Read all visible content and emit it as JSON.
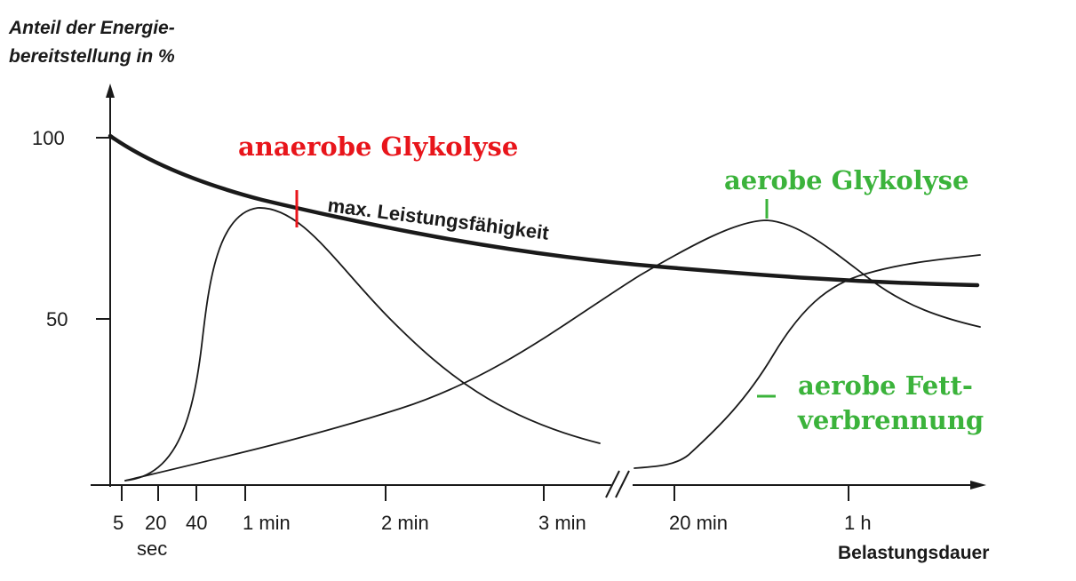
{
  "chart_data": {
    "type": "line",
    "ylabel": [
      "Anteil der Energie-",
      "bereitstellung in %"
    ],
    "xlabel": "Belastungsdauer",
    "y_ticks": [
      100,
      50
    ],
    "ylim": [
      0,
      100
    ],
    "x_tick_labels": [
      "5",
      "20",
      "40",
      "sec",
      "1 min",
      "2 min",
      "3 min",
      "20 min",
      "1 h"
    ],
    "axis_break": "between 3 min and 20 min",
    "grid": false,
    "series": [
      {
        "name": "max. Leistungsfähigkeit",
        "style": "thick",
        "points": [
          {
            "x": "0 s",
            "y": 100
          },
          {
            "x": "20 s",
            "y": 92
          },
          {
            "x": "40 s",
            "y": 87
          },
          {
            "x": "1 min",
            "y": 82
          },
          {
            "x": "2 min",
            "y": 72
          },
          {
            "x": "3 min",
            "y": 67
          },
          {
            "x": "20 min",
            "y": 63
          },
          {
            "x": "1 h",
            "y": 60
          },
          {
            "x": "end",
            "y": 55
          }
        ]
      },
      {
        "name": "anaerobe Glykolyse",
        "style": "thin",
        "points": [
          {
            "x": "5 s",
            "y": 1
          },
          {
            "x": "20 s",
            "y": 5
          },
          {
            "x": "40 s",
            "y": 45
          },
          {
            "x": "1 min",
            "y": 80
          },
          {
            "x": "2 min",
            "y": 50
          },
          {
            "x": "3 min",
            "y": 12
          }
        ]
      },
      {
        "name": "aerobe Glykolyse",
        "style": "thin",
        "points": [
          {
            "x": "5 s",
            "y": 1
          },
          {
            "x": "1 min",
            "y": 8
          },
          {
            "x": "2 min",
            "y": 23
          },
          {
            "x": "3 min",
            "y": 50
          },
          {
            "x": "20 min",
            "y": 74
          },
          {
            "x": "1 h",
            "y": 60
          },
          {
            "x": "end",
            "y": 45
          }
        ]
      },
      {
        "name": "aerobe Fettverbrennung",
        "style": "thin",
        "points": [
          {
            "x": "20 min",
            "y": 5
          },
          {
            "x": "1 h",
            "y": 60
          },
          {
            "x": "end",
            "y": 66
          }
        ]
      }
    ],
    "annotations": {
      "max_label": "max. Leistungsfähigkeit",
      "anaerobe": "anaerobe Glykolyse",
      "aerobe": "aerobe Glykolyse",
      "fett_line1": "aerobe Fett-",
      "fett_line2": "verbrennung"
    },
    "colors": {
      "axis": "#1a1a1a",
      "curve": "#1a1a1a",
      "anaerobe": "#e8151b",
      "aerobe": "#3bb33b"
    }
  }
}
